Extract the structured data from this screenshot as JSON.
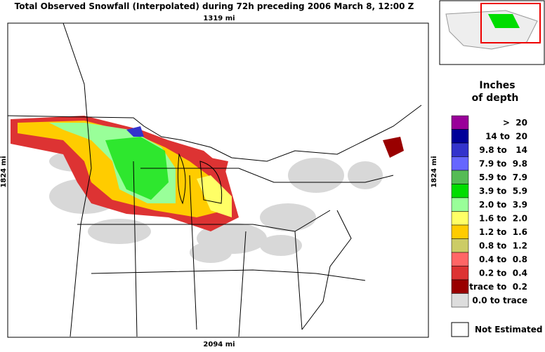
{
  "header": {
    "title": "Total Observed Snowfall (Interpolated) during 72h preceding 2006 March 8, 12:00 Z"
  },
  "map": {
    "top_scale": "1319 mi",
    "bottom_scale": "2094 mi",
    "left_scale": "1824 mi",
    "right_scale": "1824 mi"
  },
  "legend": {
    "title_line1": "Inches",
    "title_line2": "of depth",
    "entries": [
      {
        "label": ">  20",
        "color": "#990099"
      },
      {
        "label": "14 to  20",
        "color": "#000099"
      },
      {
        "label": "9.8 to   14",
        "color": "#3333cc"
      },
      {
        "label": "7.9 to  9.8",
        "color": "#6666ff"
      },
      {
        "label": "5.9 to  7.9",
        "color": "#55bb55"
      },
      {
        "label": "3.9 to  5.9",
        "color": "#00dd00"
      },
      {
        "label": "2.0 to  3.9",
        "color": "#99ff99"
      },
      {
        "label": "1.6 to  2.0",
        "color": "#ffff66"
      },
      {
        "label": "1.2 to  1.6",
        "color": "#ffcc00"
      },
      {
        "label": "0.8 to  1.2",
        "color": "#cccc66"
      },
      {
        "label": "0.4 to  0.8",
        "color": "#ff6666"
      },
      {
        "label": "0.2 to  0.4",
        "color": "#dd3333"
      },
      {
        "label": "trace to  0.2",
        "color": "#990000"
      },
      {
        "label": "0.0 to trace",
        "color": "#dddddd"
      }
    ],
    "not_estimated": "Not Estimated"
  }
}
